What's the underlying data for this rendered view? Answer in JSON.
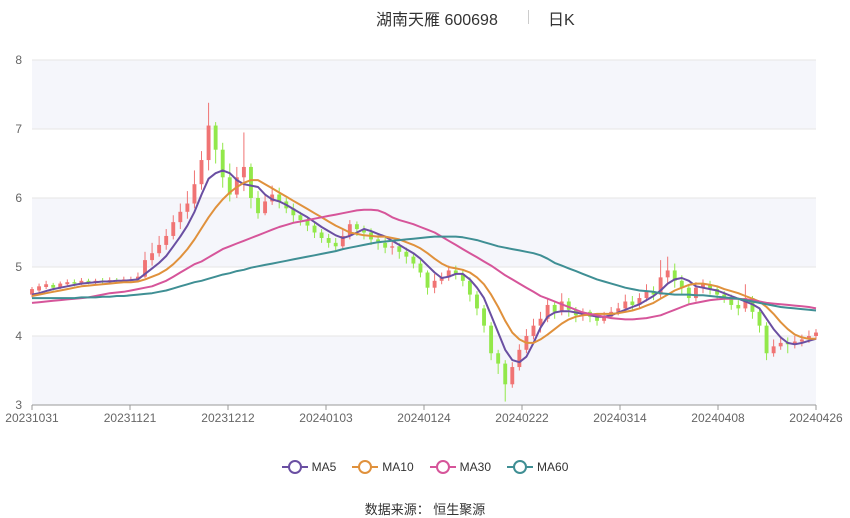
{
  "header": {
    "title": "湖南天雁 600698",
    "period": "日K"
  },
  "source": "数据来源：  恒生聚源",
  "colors": {
    "up": "#f07474",
    "down": "#92e84a",
    "grid": "#e6e6e6",
    "band": "#f5f6fb"
  },
  "chart_data": {
    "type": "candlestick",
    "ylim": [
      3,
      8
    ],
    "y_ticks": [
      "3",
      "4",
      "5",
      "6",
      "7",
      "8"
    ],
    "x_tick_labels": [
      "20231031",
      "20231121",
      "20231212",
      "20240103",
      "20240124",
      "20240222",
      "20240314",
      "20240408",
      "20240426"
    ],
    "legend": [
      {
        "name": "MA5",
        "color": "#6a4fa2"
      },
      {
        "name": "MA10",
        "color": "#e0913c"
      },
      {
        "name": "MA30",
        "color": "#d6559a"
      },
      {
        "name": "MA60",
        "color": "#3f8f94"
      }
    ],
    "candles": [
      [
        4.6,
        4.68,
        4.56,
        4.71
      ],
      [
        4.66,
        4.72,
        4.62,
        4.76
      ],
      [
        4.71,
        4.75,
        4.68,
        4.8
      ],
      [
        4.74,
        4.7,
        4.66,
        4.77
      ],
      [
        4.7,
        4.76,
        4.68,
        4.79
      ],
      [
        4.75,
        4.78,
        4.72,
        4.82
      ],
      [
        4.78,
        4.76,
        4.72,
        4.82
      ],
      [
        4.76,
        4.8,
        4.74,
        4.84
      ],
      [
        4.8,
        4.78,
        4.75,
        4.83
      ],
      [
        4.78,
        4.8,
        4.75,
        4.83
      ],
      [
        4.8,
        4.79,
        4.76,
        4.84
      ],
      [
        4.79,
        4.81,
        4.76,
        4.85
      ],
      [
        4.81,
        4.8,
        4.77,
        4.84
      ],
      [
        4.8,
        4.82,
        4.77,
        4.86
      ],
      [
        4.82,
        4.82,
        4.78,
        4.86
      ],
      [
        4.82,
        4.86,
        4.8,
        4.92
      ],
      [
        4.86,
        5.1,
        4.84,
        5.22
      ],
      [
        5.1,
        5.2,
        5.02,
        5.35
      ],
      [
        5.2,
        5.32,
        5.15,
        5.45
      ],
      [
        5.32,
        5.45,
        5.25,
        5.55
      ],
      [
        5.45,
        5.65,
        5.4,
        5.75
      ],
      [
        5.65,
        5.8,
        5.55,
        5.92
      ],
      [
        5.8,
        5.92,
        5.7,
        6.1
      ],
      [
        5.92,
        6.2,
        5.85,
        6.4
      ],
      [
        6.2,
        6.55,
        6.12,
        6.68
      ],
      [
        6.55,
        7.05,
        6.4,
        7.38
      ],
      [
        7.05,
        6.7,
        6.5,
        7.1
      ],
      [
        6.7,
        6.3,
        6.15,
        6.8
      ],
      [
        6.3,
        6.05,
        5.95,
        6.5
      ],
      [
        6.05,
        6.3,
        6.0,
        6.45
      ],
      [
        6.3,
        6.45,
        6.1,
        6.95
      ],
      [
        6.45,
        6.0,
        5.85,
        6.5
      ],
      [
        6.0,
        5.78,
        5.7,
        6.1
      ],
      [
        5.78,
        5.95,
        5.75,
        6.05
      ],
      [
        5.95,
        6.05,
        5.9,
        6.18
      ],
      [
        6.05,
        5.95,
        5.85,
        6.15
      ],
      [
        5.95,
        5.85,
        5.78,
        6.0
      ],
      [
        5.85,
        5.75,
        5.65,
        5.92
      ],
      [
        5.75,
        5.68,
        5.6,
        5.8
      ],
      [
        5.68,
        5.6,
        5.52,
        5.72
      ],
      [
        5.6,
        5.5,
        5.42,
        5.65
      ],
      [
        5.5,
        5.42,
        5.35,
        5.55
      ],
      [
        5.42,
        5.35,
        5.28,
        5.48
      ],
      [
        5.35,
        5.3,
        5.22,
        5.42
      ],
      [
        5.3,
        5.45,
        5.25,
        5.55
      ],
      [
        5.45,
        5.62,
        5.4,
        5.68
      ],
      [
        5.62,
        5.55,
        5.45,
        5.66
      ],
      [
        5.55,
        5.5,
        5.4,
        5.6
      ],
      [
        5.5,
        5.4,
        5.32,
        5.56
      ],
      [
        5.4,
        5.35,
        5.25,
        5.48
      ],
      [
        5.35,
        5.28,
        5.2,
        5.42
      ],
      [
        5.28,
        5.3,
        5.18,
        5.38
      ],
      [
        5.3,
        5.22,
        5.12,
        5.35
      ],
      [
        5.22,
        5.15,
        5.05,
        5.28
      ],
      [
        5.15,
        5.05,
        4.98,
        5.2
      ],
      [
        5.05,
        4.92,
        4.85,
        5.1
      ],
      [
        4.92,
        4.7,
        4.6,
        4.95
      ],
      [
        4.7,
        4.8,
        4.62,
        4.9
      ],
      [
        4.8,
        4.85,
        4.75,
        4.92
      ],
      [
        4.85,
        4.95,
        4.8,
        5.02
      ],
      [
        4.95,
        4.9,
        4.82,
        5.02
      ],
      [
        4.9,
        4.8,
        4.72,
        4.95
      ],
      [
        4.8,
        4.6,
        4.5,
        4.85
      ],
      [
        4.6,
        4.4,
        4.3,
        4.65
      ],
      [
        4.4,
        4.15,
        4.05,
        4.45
      ],
      [
        4.15,
        3.75,
        3.65,
        4.2
      ],
      [
        3.75,
        3.6,
        3.45,
        3.8
      ],
      [
        3.6,
        3.3,
        3.05,
        3.65
      ],
      [
        3.3,
        3.55,
        3.25,
        3.62
      ],
      [
        3.55,
        3.8,
        3.5,
        3.88
      ],
      [
        3.8,
        4.0,
        3.75,
        4.1
      ],
      [
        4.0,
        4.15,
        3.95,
        4.25
      ],
      [
        4.15,
        4.25,
        4.05,
        4.35
      ],
      [
        4.25,
        4.45,
        4.2,
        4.55
      ],
      [
        4.45,
        4.35,
        4.25,
        4.5
      ],
      [
        4.35,
        4.5,
        4.3,
        4.62
      ],
      [
        4.5,
        4.38,
        4.28,
        4.55
      ],
      [
        4.38,
        4.3,
        4.2,
        4.42
      ],
      [
        4.3,
        4.35,
        4.22,
        4.4
      ],
      [
        4.35,
        4.28,
        4.2,
        4.38
      ],
      [
        4.28,
        4.22,
        4.15,
        4.32
      ],
      [
        4.22,
        4.28,
        4.18,
        4.35
      ],
      [
        4.28,
        4.35,
        4.25,
        4.42
      ],
      [
        4.35,
        4.4,
        4.3,
        4.48
      ],
      [
        4.4,
        4.5,
        4.35,
        4.6
      ],
      [
        4.5,
        4.45,
        4.38,
        4.58
      ],
      [
        4.45,
        4.55,
        4.4,
        4.62
      ],
      [
        4.55,
        4.65,
        4.5,
        4.75
      ],
      [
        4.65,
        4.6,
        4.52,
        4.72
      ],
      [
        4.6,
        4.85,
        4.55,
        5.1
      ],
      [
        4.85,
        4.95,
        4.75,
        5.15
      ],
      [
        4.95,
        4.8,
        4.7,
        5.05
      ],
      [
        4.8,
        4.7,
        4.6,
        4.88
      ],
      [
        4.7,
        4.55,
        4.45,
        4.75
      ],
      [
        4.55,
        4.7,
        4.5,
        4.78
      ],
      [
        4.7,
        4.75,
        4.62,
        4.82
      ],
      [
        4.75,
        4.68,
        4.6,
        4.8
      ],
      [
        4.68,
        4.6,
        4.52,
        4.72
      ],
      [
        4.6,
        4.55,
        4.48,
        4.65
      ],
      [
        4.55,
        4.45,
        4.38,
        4.6
      ],
      [
        4.45,
        4.4,
        4.3,
        4.52
      ],
      [
        4.4,
        4.55,
        4.35,
        4.75
      ],
      [
        4.55,
        4.35,
        4.25,
        4.58
      ],
      [
        4.35,
        4.15,
        4.05,
        4.4
      ],
      [
        4.15,
        3.75,
        3.65,
        4.2
      ],
      [
        3.75,
        3.85,
        3.7,
        3.95
      ],
      [
        3.85,
        3.9,
        3.8,
        4.0
      ],
      [
        3.9,
        3.88,
        3.75,
        3.98
      ],
      [
        3.88,
        3.92,
        3.82,
        4.0
      ],
      [
        3.92,
        3.95,
        3.85,
        4.02
      ],
      [
        3.95,
        4.0,
        3.9,
        4.08
      ],
      [
        4.0,
        4.05,
        3.95,
        4.1
      ]
    ],
    "series": [
      {
        "name": "MA5",
        "values": [
          4.6,
          4.62,
          4.65,
          4.68,
          4.7,
          4.72,
          4.74,
          4.76,
          4.77,
          4.78,
          4.79,
          4.79,
          4.8,
          4.8,
          4.81,
          4.82,
          4.9,
          4.98,
          5.06,
          5.16,
          5.3,
          5.44,
          5.6,
          5.8,
          6.05,
          6.28,
          6.36,
          6.4,
          6.36,
          6.26,
          6.2,
          6.18,
          6.16,
          6.05,
          5.98,
          5.95,
          5.9,
          5.84,
          5.78,
          5.72,
          5.65,
          5.58,
          5.52,
          5.46,
          5.42,
          5.45,
          5.5,
          5.55,
          5.52,
          5.48,
          5.44,
          5.38,
          5.32,
          5.26,
          5.2,
          5.12,
          5.02,
          4.92,
          4.84,
          4.86,
          4.9,
          4.9,
          4.82,
          4.7,
          4.55,
          4.3,
          4.05,
          3.8,
          3.65,
          3.62,
          3.7,
          3.9,
          4.12,
          4.28,
          4.34,
          4.36,
          4.36,
          4.34,
          4.32,
          4.3,
          4.28,
          4.28,
          4.3,
          4.34,
          4.38,
          4.42,
          4.46,
          4.52,
          4.58,
          4.66,
          4.76,
          4.82,
          4.84,
          4.8,
          4.72,
          4.7,
          4.68,
          4.66,
          4.62,
          4.58,
          4.54,
          4.5,
          4.46,
          4.4,
          4.25,
          4.1,
          3.98,
          3.9,
          3.88,
          3.9,
          3.93,
          3.96
        ]
      },
      {
        "name": "MA10",
        "values": [
          4.58,
          4.6,
          4.62,
          4.64,
          4.66,
          4.68,
          4.7,
          4.72,
          4.73,
          4.74,
          4.75,
          4.76,
          4.77,
          4.78,
          4.78,
          4.79,
          4.82,
          4.86,
          4.9,
          4.96,
          5.04,
          5.14,
          5.26,
          5.4,
          5.56,
          5.72,
          5.86,
          5.98,
          6.08,
          6.16,
          6.22,
          6.26,
          6.26,
          6.2,
          6.14,
          6.08,
          6.02,
          5.96,
          5.9,
          5.84,
          5.78,
          5.72,
          5.66,
          5.6,
          5.55,
          5.5,
          5.48,
          5.46,
          5.45,
          5.44,
          5.44,
          5.42,
          5.4,
          5.36,
          5.32,
          5.27,
          5.2,
          5.12,
          5.05,
          5.0,
          4.98,
          4.96,
          4.92,
          4.85,
          4.75,
          4.6,
          4.42,
          4.22,
          4.05,
          3.95,
          3.9,
          3.9,
          3.95,
          4.02,
          4.1,
          4.18,
          4.24,
          4.28,
          4.3,
          4.31,
          4.32,
          4.32,
          4.32,
          4.33,
          4.35,
          4.37,
          4.4,
          4.44,
          4.48,
          4.54,
          4.6,
          4.66,
          4.7,
          4.74,
          4.76,
          4.76,
          4.74,
          4.72,
          4.68,
          4.65,
          4.62,
          4.58,
          4.54,
          4.5,
          4.42,
          4.32,
          4.2,
          4.1,
          4.02,
          3.98,
          3.96,
          3.96
        ]
      },
      {
        "name": "MA30",
        "values": [
          4.48,
          4.49,
          4.5,
          4.51,
          4.52,
          4.53,
          4.54,
          4.55,
          4.56,
          4.58,
          4.6,
          4.62,
          4.63,
          4.64,
          4.66,
          4.68,
          4.7,
          4.72,
          4.76,
          4.8,
          4.86,
          4.92,
          4.98,
          5.04,
          5.08,
          5.14,
          5.2,
          5.26,
          5.3,
          5.34,
          5.38,
          5.42,
          5.46,
          5.5,
          5.54,
          5.58,
          5.61,
          5.64,
          5.66,
          5.68,
          5.7,
          5.72,
          5.74,
          5.76,
          5.78,
          5.8,
          5.82,
          5.83,
          5.83,
          5.82,
          5.78,
          5.72,
          5.68,
          5.65,
          5.62,
          5.58,
          5.54,
          5.5,
          5.44,
          5.38,
          5.32,
          5.26,
          5.2,
          5.14,
          5.08,
          5.02,
          4.95,
          4.88,
          4.82,
          4.76,
          4.7,
          4.64,
          4.58,
          4.54,
          4.5,
          4.46,
          4.42,
          4.38,
          4.34,
          4.32,
          4.3,
          4.28,
          4.26,
          4.25,
          4.24,
          4.24,
          4.25,
          4.26,
          4.28,
          4.3,
          4.34,
          4.38,
          4.42,
          4.46,
          4.48,
          4.5,
          4.52,
          4.53,
          4.54,
          4.54,
          4.54,
          4.53,
          4.52,
          4.5,
          4.48,
          4.47,
          4.46,
          4.45,
          4.44,
          4.43,
          4.42,
          4.4
        ]
      },
      {
        "name": "MA60",
        "values": [
          4.55,
          4.55,
          4.55,
          4.55,
          4.55,
          4.55,
          4.55,
          4.56,
          4.56,
          4.56,
          4.57,
          4.57,
          4.58,
          4.58,
          4.59,
          4.6,
          4.61,
          4.62,
          4.64,
          4.66,
          4.69,
          4.72,
          4.75,
          4.78,
          4.8,
          4.83,
          4.86,
          4.89,
          4.91,
          4.94,
          4.96,
          4.99,
          5.01,
          5.03,
          5.05,
          5.07,
          5.09,
          5.11,
          5.13,
          5.15,
          5.17,
          5.19,
          5.21,
          5.23,
          5.26,
          5.28,
          5.3,
          5.32,
          5.34,
          5.36,
          5.37,
          5.38,
          5.39,
          5.4,
          5.41,
          5.42,
          5.43,
          5.44,
          5.44,
          5.44,
          5.44,
          5.43,
          5.41,
          5.39,
          5.36,
          5.33,
          5.3,
          5.28,
          5.26,
          5.24,
          5.22,
          5.2,
          5.17,
          5.12,
          5.06,
          5.02,
          4.98,
          4.94,
          4.9,
          4.86,
          4.82,
          4.79,
          4.76,
          4.73,
          4.7,
          4.68,
          4.66,
          4.65,
          4.64,
          4.62,
          4.61,
          4.6,
          4.6,
          4.6,
          4.59,
          4.59,
          4.58,
          4.57,
          4.56,
          4.55,
          4.54,
          4.52,
          4.5,
          4.48,
          4.46,
          4.44,
          4.42,
          4.41,
          4.4,
          4.39,
          4.38,
          4.37
        ]
      }
    ]
  }
}
